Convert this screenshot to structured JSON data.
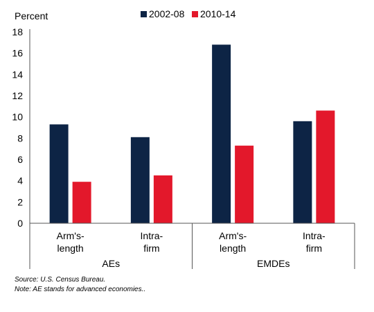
{
  "chart_data": {
    "type": "bar",
    "ylabel": "Percent",
    "ylim": [
      0,
      18
    ],
    "yticks": [
      0,
      2,
      4,
      6,
      8,
      10,
      12,
      14,
      16,
      18
    ],
    "grid": false,
    "legend_position": "top",
    "categories": [
      {
        "lines": [
          "Arm's-",
          "length"
        ],
        "group": "AEs"
      },
      {
        "lines": [
          "Intra-",
          "firm"
        ],
        "group": "AEs"
      },
      {
        "lines": [
          "Arm's-",
          "length"
        ],
        "group": "EMDEs"
      },
      {
        "lines": [
          "Intra-",
          "firm"
        ],
        "group": "EMDEs"
      }
    ],
    "groups": [
      "AEs",
      "EMDEs"
    ],
    "series": [
      {
        "name": "2002-08",
        "color": "#0d2445",
        "values": [
          9.3,
          8.1,
          16.8,
          9.6
        ]
      },
      {
        "name": "2010-14",
        "color": "#e3182b",
        "values": [
          3.9,
          4.5,
          7.3,
          10.6
        ]
      }
    ]
  },
  "notes": {
    "source": "Source: U.S. Census Bureau.",
    "note": "Note: AE stands for advanced economies.."
  }
}
